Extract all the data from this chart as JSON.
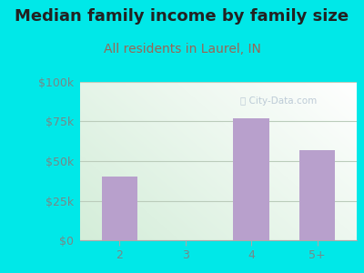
{
  "title": "Median family income by family size",
  "subtitle": "All residents in Laurel, IN",
  "categories": [
    "2",
    "3",
    "4",
    "5+"
  ],
  "values": [
    40000,
    0,
    77000,
    57000
  ],
  "bar_color": "#b8a0cc",
  "background_color": "#00e8e8",
  "title_color": "#222222",
  "subtitle_color": "#996655",
  "tick_color": "#778888",
  "grid_color": "#bbccbb",
  "ylim": [
    0,
    100000
  ],
  "yticks": [
    0,
    25000,
    50000,
    75000,
    100000
  ],
  "ytick_labels": [
    "$0",
    "$25k",
    "$50k",
    "$75k",
    "$100k"
  ],
  "watermark": "City-Data.com",
  "title_fontsize": 13,
  "subtitle_fontsize": 10,
  "tick_fontsize": 9
}
